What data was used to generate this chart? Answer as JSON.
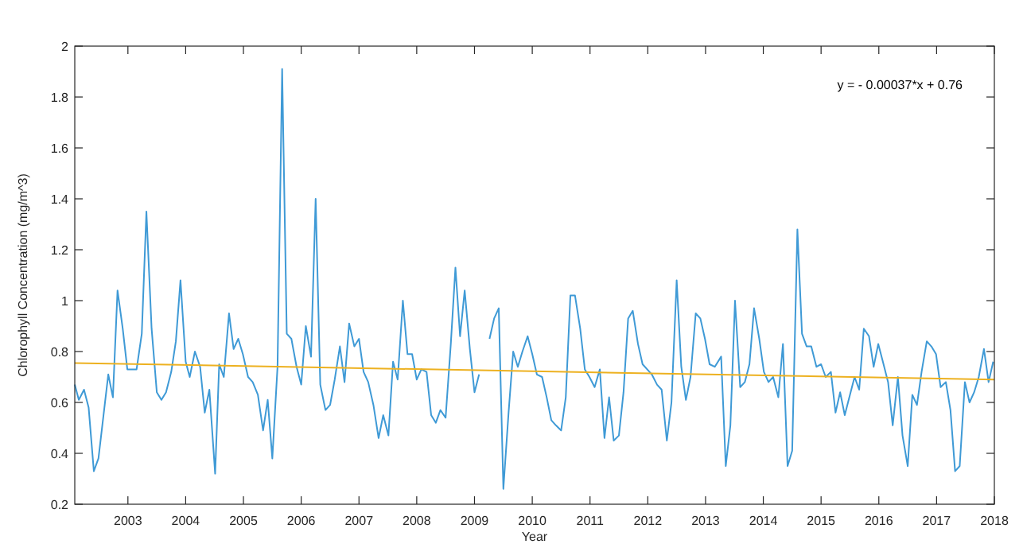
{
  "chart_data": {
    "type": "line",
    "xlabel": "Year",
    "ylabel": "Chlorophyll Concentration (mg/m^3)",
    "annotations": [
      "y = - 0.00037*x + 0.76"
    ],
    "xlim": [
      2002.08,
      2018
    ],
    "xticks": [
      2003,
      2004,
      2005,
      2006,
      2007,
      2008,
      2009,
      2010,
      2011,
      2012,
      2013,
      2014,
      2015,
      2016,
      2017,
      2018
    ],
    "ylim": [
      0.2,
      2
    ],
    "yticks": [
      0.2,
      0.4,
      0.6,
      0.8,
      1,
      1.2,
      1.4,
      1.6,
      1.8,
      2
    ],
    "series": [
      {
        "color": "#3f9ad6",
        "x": [
          2002.08,
          2002.15,
          2002.24,
          2002.32,
          2002.41,
          2002.49,
          2002.66,
          2002.74,
          2002.82,
          2002.91,
          2002.99,
          2003.15,
          2003.24,
          2003.32,
          2003.41,
          2003.5,
          2003.58,
          2003.66,
          2003.75,
          2003.83,
          2003.91,
          2004,
          2004.07,
          2004.16,
          2004.25,
          2004.33,
          2004.41,
          2004.51,
          2004.58,
          2004.66,
          2004.75,
          2004.83,
          2004.91,
          2004.99,
          2005.08,
          2005.16,
          2005.25,
          2005.34,
          2005.42,
          2005.5,
          2005.59,
          2005.67,
          2005.75,
          2005.83,
          2005.92,
          2006,
          2006.08,
          2006.17,
          2006.25,
          2006.33,
          2006.42,
          2006.5,
          2006.58,
          2006.67,
          2006.75,
          2006.83,
          2006.92,
          2007,
          2007.08,
          2007.16,
          2007.25,
          2007.34,
          2007.42,
          2007.51,
          2007.59,
          2007.67,
          2007.76,
          2007.84,
          2007.92,
          2008,
          2008.08,
          2008.17,
          2008.25,
          2008.33,
          2008.41,
          2008.5,
          2008.59,
          2008.67,
          2008.75,
          2008.83,
          2008.92,
          2009,
          2009.08,
          2009.17,
          2009.26,
          2009.34,
          2009.42,
          2009.5,
          2009.59,
          2009.67,
          2009.75,
          2009.83,
          2009.92,
          2010,
          2010.08,
          2010.17,
          2010.25,
          2010.33,
          2010.41,
          2010.5,
          2010.58,
          2010.66,
          2010.74,
          2010.83,
          2010.91,
          2010.99,
          2011.08,
          2011.17,
          2011.25,
          2011.33,
          2011.41,
          2011.5,
          2011.58,
          2011.66,
          2011.74,
          2011.83,
          2011.91,
          2011.99,
          2012.07,
          2012.16,
          2012.24,
          2012.33,
          2012.41,
          2012.5,
          2012.58,
          2012.66,
          2012.74,
          2012.83,
          2012.91,
          2012.99,
          2013.07,
          2013.16,
          2013.27,
          2013.35,
          2013.43,
          2013.51,
          2013.6,
          2013.68,
          2013.76,
          2013.84,
          2013.93,
          2014.01,
          2014.09,
          2014.17,
          2014.26,
          2014.34,
          2014.42,
          2014.5,
          2014.59,
          2014.67,
          2014.75,
          2014.83,
          2014.92,
          2015,
          2015.08,
          2015.17,
          2015.25,
          2015.33,
          2015.41,
          2015.5,
          2015.58,
          2015.66,
          2015.74,
          2015.83,
          2015.91,
          2015.99,
          2016.07,
          2016.16,
          2016.24,
          2016.33,
          2016.41,
          2016.5,
          2016.58,
          2016.66,
          2016.74,
          2016.83,
          2016.91,
          2016.99,
          2017.07,
          2017.16,
          2017.24,
          2017.32,
          2017.4,
          2017.49,
          2017.57,
          2017.65,
          2017.73,
          2017.82,
          2017.9,
          2017.98
        ],
        "values": [
          0.67,
          0.61,
          0.65,
          0.58,
          0.33,
          0.38,
          0.71,
          0.62,
          1.04,
          0.89,
          0.73,
          0.73,
          0.87,
          1.35,
          0.89,
          0.64,
          0.61,
          0.64,
          0.72,
          0.84,
          1.08,
          0.76,
          0.7,
          0.8,
          0.74,
          0.56,
          0.65,
          0.32,
          0.75,
          0.7,
          0.95,
          0.81,
          0.85,
          0.79,
          0.7,
          0.68,
          0.63,
          0.49,
          0.61,
          0.38,
          0.74,
          1.91,
          0.87,
          0.85,
          0.74,
          0.67,
          0.9,
          0.78,
          1.4,
          0.67,
          0.57,
          0.59,
          0.69,
          0.82,
          0.68,
          0.91,
          0.82,
          0.85,
          0.72,
          0.68,
          0.59,
          0.46,
          0.55,
          0.47,
          0.76,
          0.69,
          1,
          0.79,
          0.79,
          0.69,
          0.73,
          0.72,
          0.55,
          0.52,
          0.57,
          0.54,
          0.83,
          1.13,
          0.86,
          1.04,
          0.81,
          0.64,
          0.71,
          null,
          0.85,
          0.93,
          0.97,
          0.26,
          0.56,
          0.8,
          0.74,
          0.8,
          0.86,
          0.79,
          0.71,
          0.7,
          0.62,
          0.53,
          0.51,
          0.49,
          0.62,
          1.02,
          1.02,
          0.89,
          0.73,
          0.7,
          0.66,
          0.73,
          0.46,
          0.62,
          0.45,
          0.47,
          0.64,
          0.93,
          0.96,
          0.83,
          0.75,
          0.73,
          0.71,
          0.67,
          0.65,
          0.45,
          0.6,
          1.08,
          0.74,
          0.61,
          0.7,
          0.95,
          0.93,
          0.85,
          0.75,
          0.74,
          0.78,
          0.35,
          0.51,
          1,
          0.66,
          0.68,
          0.75,
          0.97,
          0.85,
          0.72,
          0.68,
          0.7,
          0.62,
          0.83,
          0.35,
          0.41,
          1.28,
          0.87,
          0.82,
          0.82,
          0.74,
          0.75,
          0.7,
          0.72,
          0.56,
          0.64,
          0.55,
          0.63,
          0.7,
          0.65,
          0.89,
          0.86,
          0.74,
          0.83,
          0.76,
          0.68,
          0.51,
          0.7,
          0.47,
          0.35,
          0.63,
          0.59,
          0.72,
          0.84,
          0.82,
          0.79,
          0.66,
          0.68,
          0.57,
          0.33,
          0.35,
          0.68,
          0.6,
          0.64,
          0.7,
          0.81,
          0.68,
          0.76
        ]
      },
      {
        "type": "line",
        "color": "#edb120",
        "x": [
          2002.08,
          2018
        ],
        "values": [
          0.755,
          0.69
        ]
      }
    ]
  }
}
